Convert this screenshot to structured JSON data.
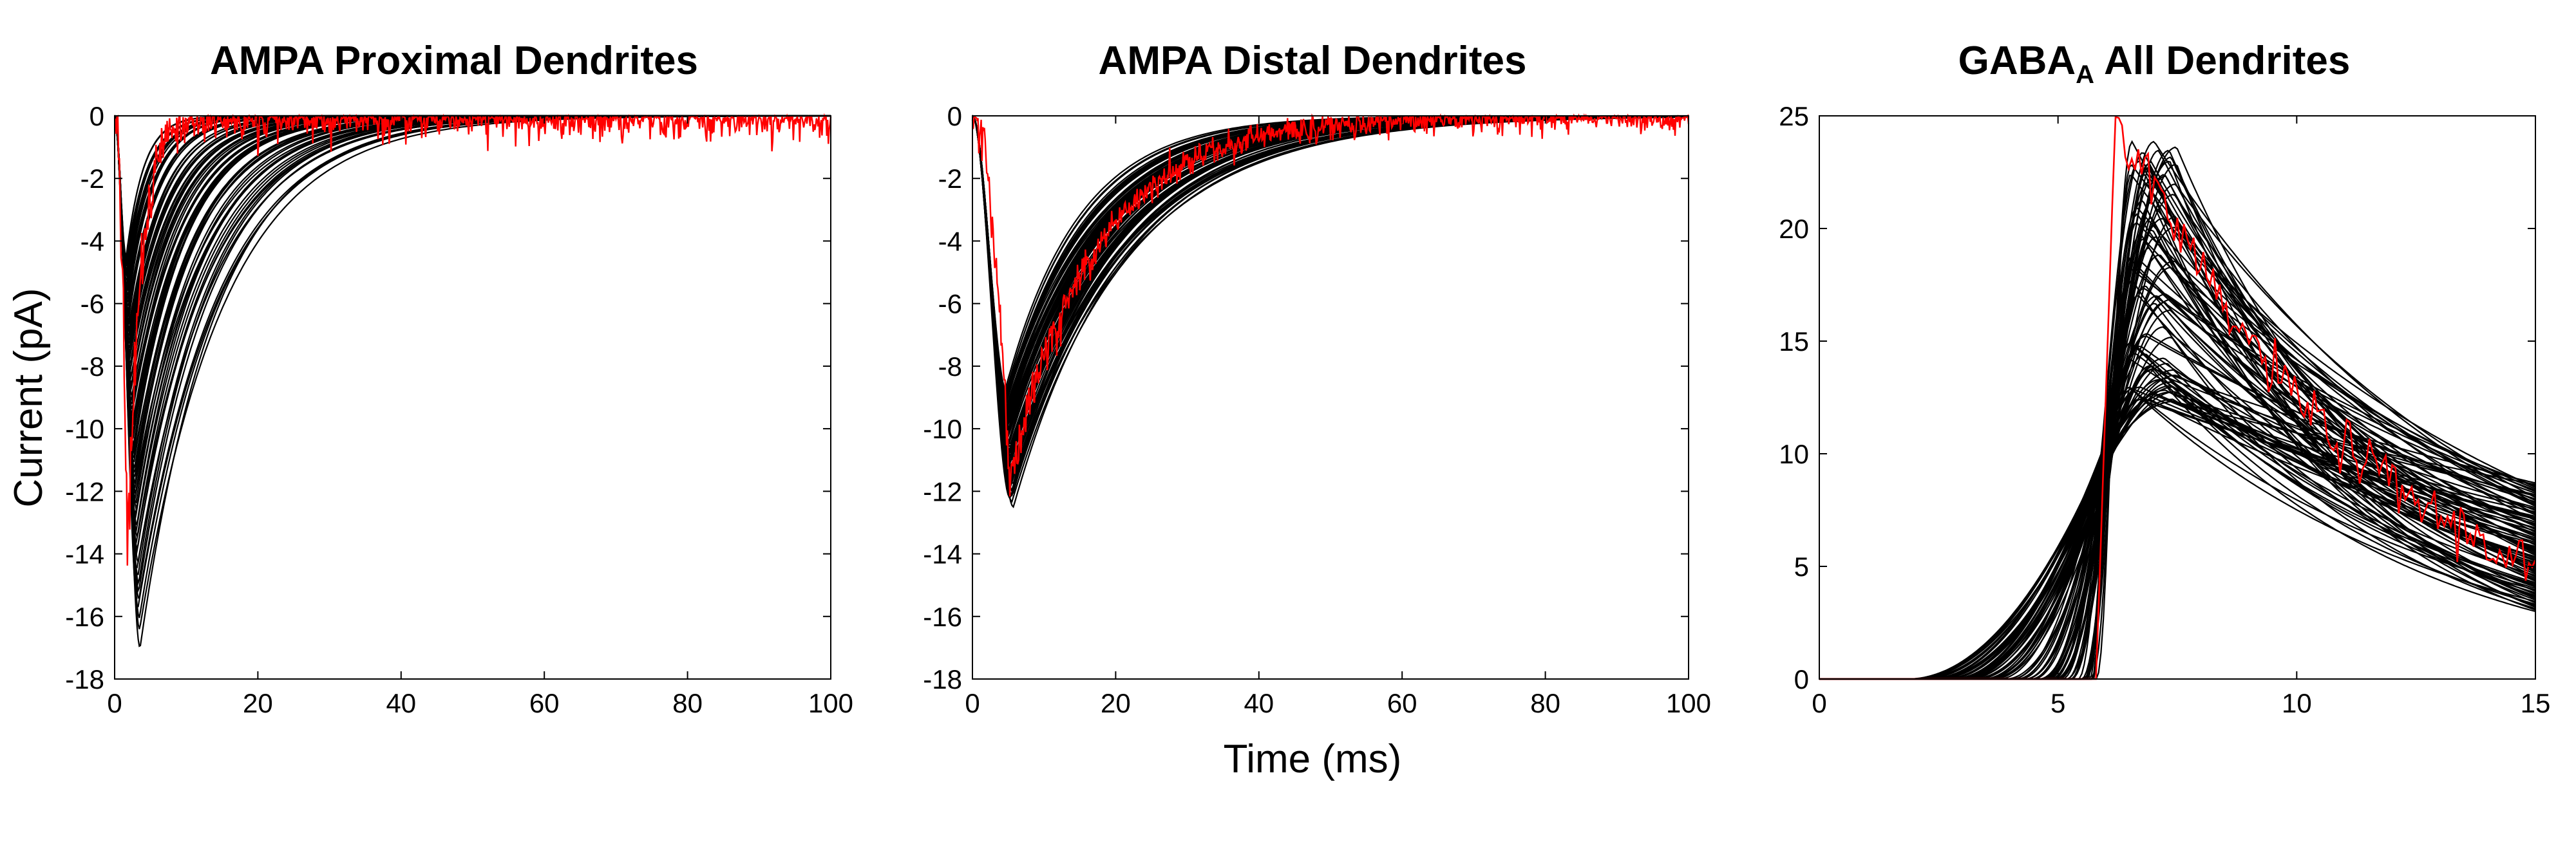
{
  "chart_data": [
    {
      "type": "line",
      "title": "AMPA Proximal Dendrites",
      "ylabel": "Current (pA)",
      "xlabel": "",
      "xlim": [
        0,
        100
      ],
      "ylim": [
        -18,
        0
      ],
      "xticks": [
        "0",
        "20",
        "40",
        "60",
        "80",
        "100"
      ],
      "yticks": [
        "0",
        "-2",
        "-4",
        "-6",
        "-8",
        "-10",
        "-12",
        "-14",
        "-16",
        "-18"
      ],
      "model_traces": {
        "count": 80,
        "peak_range": [
          -17,
          -4.5
        ],
        "peak_time_range": [
          1.6,
          3.5
        ],
        "decay_tau_range": [
          2.5,
          11
        ],
        "color": "#000000"
      },
      "recorded_trace": {
        "peak": -14,
        "peak_time": 1.8,
        "decay_tau": 1.8,
        "noise_pA": 0.9,
        "color": "#ff0000"
      }
    },
    {
      "type": "line",
      "title": "AMPA Distal Dendrites",
      "ylabel": "",
      "xlabel": "Time (ms)",
      "xlim": [
        0,
        100
      ],
      "ylim": [
        -18,
        0
      ],
      "xticks": [
        "0",
        "20",
        "40",
        "60",
        "80",
        "100"
      ],
      "yticks": [
        "0",
        "-2",
        "-4",
        "-6",
        "-8",
        "-10",
        "-12",
        "-14",
        "-16",
        "-18"
      ],
      "model_traces": {
        "count": 80,
        "peak_range": [
          -12.5,
          -8.8
        ],
        "peak_time_range": [
          4.6,
          5.6
        ],
        "decay_tau_range": [
          11,
          16
        ],
        "color": "#000000"
      },
      "recorded_trace": {
        "peak": -11.5,
        "peak_time": 5.2,
        "decay_tau": 12,
        "noise_pA": 0.6,
        "color": "#ff0000"
      }
    },
    {
      "type": "line",
      "title": "GABA",
      "title_subscript": "A",
      "title_suffix": " All Dendrites",
      "ylabel": "",
      "xlabel": "",
      "xlim": [
        0,
        15
      ],
      "ylim": [
        0,
        25
      ],
      "xticks": [
        "0",
        "5",
        "10",
        "15"
      ],
      "yticks": [
        "0",
        "5",
        "10",
        "15",
        "20",
        "25"
      ],
      "model_traces": {
        "count": 90,
        "onset_range": [
          1.8,
          5.9
        ],
        "peak_range": [
          12.3,
          24
        ],
        "peak_time_range": [
          6.5,
          7.5
        ],
        "value_at_15ms_range": [
          3.0,
          8.7
        ],
        "color": "#000000"
      },
      "recorded_trace": {
        "onset": 5.8,
        "peak": 25,
        "peak_time": 6.2,
        "value_at_15ms": 5,
        "color": "#ff0000"
      }
    }
  ]
}
